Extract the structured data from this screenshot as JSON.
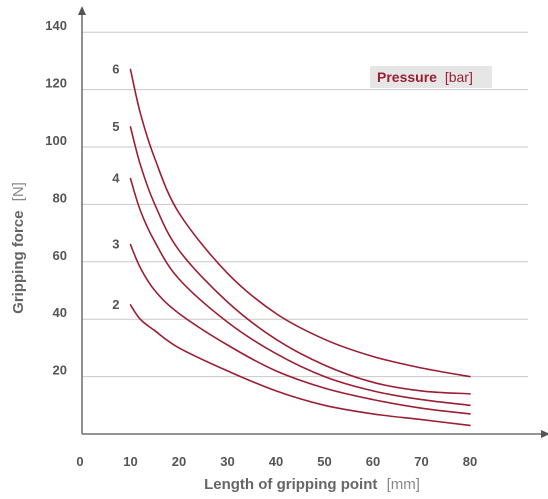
{
  "chart_data": {
    "type": "line",
    "xlabel": "Length of gripping point",
    "xlabel_unit": "[mm]",
    "ylabel": "Gripping force",
    "ylabel_unit": "[N]",
    "legend": {
      "title": "Pressure",
      "unit": "[bar]",
      "placement": "top-right"
    },
    "x_ticks": [
      0,
      10,
      20,
      30,
      40,
      50,
      60,
      70,
      80
    ],
    "y_ticks": [
      20,
      40,
      60,
      80,
      100,
      120,
      140
    ],
    "xlim": [
      0,
      90
    ],
    "ylim": [
      0,
      150
    ],
    "grid": "horizontal",
    "colors": {
      "line": "#9b1f32",
      "grid": "#c8c8c8",
      "axis": "#555555",
      "legend_bg": "#e6e6e6"
    },
    "series": [
      {
        "name": "2",
        "points": [
          [
            10,
            45
          ],
          [
            12,
            40
          ],
          [
            15,
            36
          ],
          [
            20,
            30
          ],
          [
            30,
            22
          ],
          [
            40,
            15
          ],
          [
            50,
            10
          ],
          [
            60,
            7
          ],
          [
            70,
            5
          ],
          [
            80,
            3
          ]
        ]
      },
      {
        "name": "3",
        "points": [
          [
            10,
            66
          ],
          [
            12,
            58
          ],
          [
            15,
            50
          ],
          [
            20,
            42
          ],
          [
            30,
            31
          ],
          [
            40,
            22
          ],
          [
            50,
            16
          ],
          [
            60,
            12
          ],
          [
            70,
            9
          ],
          [
            80,
            7
          ]
        ]
      },
      {
        "name": "4",
        "points": [
          [
            10,
            89
          ],
          [
            12,
            78
          ],
          [
            15,
            67
          ],
          [
            20,
            54
          ],
          [
            30,
            39
          ],
          [
            40,
            28
          ],
          [
            50,
            20
          ],
          [
            60,
            15
          ],
          [
            70,
            12
          ],
          [
            80,
            10
          ]
        ]
      },
      {
        "name": "5",
        "points": [
          [
            10,
            107
          ],
          [
            12,
            94
          ],
          [
            15,
            80
          ],
          [
            20,
            64
          ],
          [
            30,
            46
          ],
          [
            40,
            33
          ],
          [
            50,
            24
          ],
          [
            60,
            18
          ],
          [
            70,
            15
          ],
          [
            80,
            14
          ]
        ]
      },
      {
        "name": "6",
        "points": [
          [
            10,
            127
          ],
          [
            12,
            112
          ],
          [
            15,
            96
          ],
          [
            20,
            77
          ],
          [
            30,
            56
          ],
          [
            40,
            42
          ],
          [
            50,
            33
          ],
          [
            60,
            27
          ],
          [
            70,
            23
          ],
          [
            80,
            20
          ]
        ]
      }
    ]
  }
}
